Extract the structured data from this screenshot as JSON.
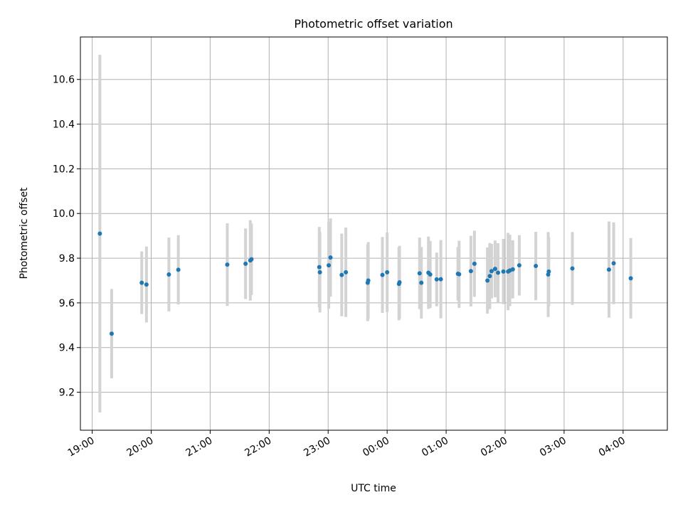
{
  "chart_data": {
    "type": "scatter",
    "title": "Photometric offset variation",
    "xlabel": "UTC time",
    "ylabel": "Photometric offset",
    "xlim_hours": [
      18.8,
      28.75
    ],
    "ylim": [
      9.03,
      10.79
    ],
    "x_ticks": [
      {
        "hour": 19,
        "label": "19:00"
      },
      {
        "hour": 20,
        "label": "20:00"
      },
      {
        "hour": 21,
        "label": "21:00"
      },
      {
        "hour": 22,
        "label": "22:00"
      },
      {
        "hour": 23,
        "label": "23:00"
      },
      {
        "hour": 24,
        "label": "00:00"
      },
      {
        "hour": 25,
        "label": "01:00"
      },
      {
        "hour": 26,
        "label": "02:00"
      },
      {
        "hour": 27,
        "label": "03:00"
      },
      {
        "hour": 28,
        "label": "04:00"
      }
    ],
    "y_ticks": [
      {
        "value": 9.2,
        "label": "9.2"
      },
      {
        "value": 9.4,
        "label": "9.4"
      },
      {
        "value": 9.6,
        "label": "9.6"
      },
      {
        "value": 9.8,
        "label": "9.8"
      },
      {
        "value": 10.0,
        "label": "10.0"
      },
      {
        "value": 10.2,
        "label": "10.2"
      },
      {
        "value": 10.4,
        "label": "10.4"
      },
      {
        "value": 10.6,
        "label": "10.6"
      }
    ],
    "grid": true,
    "point_color": "#1f77b4",
    "errorbar_color": "#d3d3d3",
    "series": [
      {
        "name": "offset",
        "points": [
          {
            "hour": 19.13,
            "y": 9.91,
            "yerr": 0.8
          },
          {
            "hour": 19.33,
            "y": 9.462,
            "yerr": 0.2
          },
          {
            "hour": 19.84,
            "y": 9.69,
            "yerr": 0.14
          },
          {
            "hour": 19.92,
            "y": 9.682,
            "yerr": 0.17
          },
          {
            "hour": 20.3,
            "y": 9.727,
            "yerr": 0.165
          },
          {
            "hour": 20.46,
            "y": 9.748,
            "yerr": 0.155
          },
          {
            "hour": 21.29,
            "y": 9.771,
            "yerr": 0.185
          },
          {
            "hour": 21.6,
            "y": 9.775,
            "yerr": 0.158
          },
          {
            "hour": 21.68,
            "y": 9.79,
            "yerr": 0.18
          },
          {
            "hour": 21.7,
            "y": 9.795,
            "yerr": 0.16
          },
          {
            "hour": 22.85,
            "y": 9.76,
            "yerr": 0.18
          },
          {
            "hour": 22.86,
            "y": 9.737,
            "yerr": 0.18
          },
          {
            "hour": 23.01,
            "y": 9.768,
            "yerr": 0.195
          },
          {
            "hour": 23.04,
            "y": 9.803,
            "yerr": 0.175
          },
          {
            "hour": 23.23,
            "y": 9.725,
            "yerr": 0.185
          },
          {
            "hour": 23.3,
            "y": 9.737,
            "yerr": 0.2
          },
          {
            "hour": 23.67,
            "y": 9.69,
            "yerr": 0.172
          },
          {
            "hour": 23.68,
            "y": 9.7,
            "yerr": 0.172
          },
          {
            "hour": 23.92,
            "y": 9.725,
            "yerr": 0.17
          },
          {
            "hour": 24.0,
            "y": 9.737,
            "yerr": 0.178
          },
          {
            "hour": 24.2,
            "y": 9.685,
            "yerr": 0.163
          },
          {
            "hour": 24.21,
            "y": 9.692,
            "yerr": 0.163
          },
          {
            "hour": 24.55,
            "y": 9.732,
            "yerr": 0.16
          },
          {
            "hour": 24.58,
            "y": 9.69,
            "yerr": 0.16
          },
          {
            "hour": 24.7,
            "y": 9.735,
            "yerr": 0.162
          },
          {
            "hour": 24.73,
            "y": 9.727,
            "yerr": 0.15
          },
          {
            "hour": 24.84,
            "y": 9.705,
            "yerr": 0.12
          },
          {
            "hour": 24.91,
            "y": 9.706,
            "yerr": 0.175
          },
          {
            "hour": 25.2,
            "y": 9.73,
            "yerr": 0.12
          },
          {
            "hour": 25.22,
            "y": 9.728,
            "yerr": 0.15
          },
          {
            "hour": 25.42,
            "y": 9.742,
            "yerr": 0.158
          },
          {
            "hour": 25.48,
            "y": 9.775,
            "yerr": 0.148
          },
          {
            "hour": 25.7,
            "y": 9.7,
            "yerr": 0.148
          },
          {
            "hour": 25.74,
            "y": 9.72,
            "yerr": 0.148
          },
          {
            "hour": 25.77,
            "y": 9.742,
            "yerr": 0.122
          },
          {
            "hour": 25.83,
            "y": 9.752,
            "yerr": 0.127
          },
          {
            "hour": 25.88,
            "y": 9.735,
            "yerr": 0.132
          },
          {
            "hour": 25.97,
            "y": 9.74,
            "yerr": 0.146
          },
          {
            "hour": 26.05,
            "y": 9.74,
            "yerr": 0.173
          },
          {
            "hour": 26.08,
            "y": 9.745,
            "yerr": 0.16
          },
          {
            "hour": 26.13,
            "y": 9.75,
            "yerr": 0.13
          },
          {
            "hour": 26.24,
            "y": 9.768,
            "yerr": 0.135
          },
          {
            "hour": 26.52,
            "y": 9.765,
            "yerr": 0.153
          },
          {
            "hour": 26.73,
            "y": 9.727,
            "yerr": 0.19
          },
          {
            "hour": 26.74,
            "y": 9.74,
            "yerr": 0.155
          },
          {
            "hour": 27.14,
            "y": 9.754,
            "yerr": 0.163
          },
          {
            "hour": 27.76,
            "y": 9.749,
            "yerr": 0.215
          },
          {
            "hour": 27.84,
            "y": 9.777,
            "yerr": 0.183
          },
          {
            "hour": 28.13,
            "y": 9.71,
            "yerr": 0.18
          }
        ]
      }
    ]
  }
}
